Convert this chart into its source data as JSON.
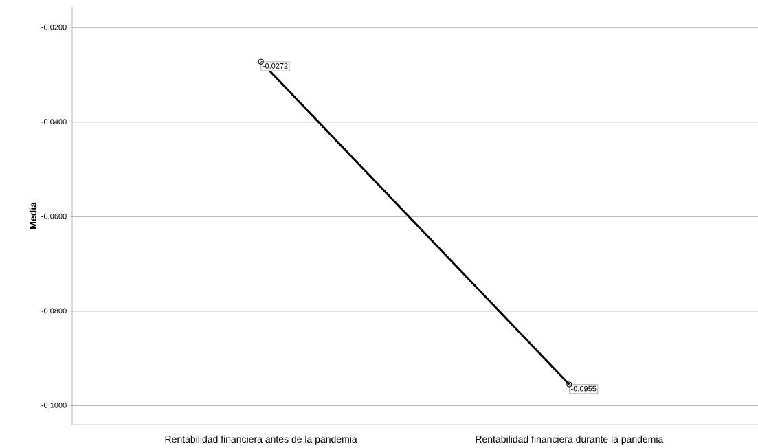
{
  "chart_data": {
    "type": "line",
    "ylabel": "Media",
    "categories": [
      "Rentabilidad financiera antes de la pandemia",
      "Rentabilidad financiera durante la pandemia"
    ],
    "values": [
      -0.0272,
      -0.0955
    ],
    "value_labels": [
      "-0,0272",
      "-0,0955"
    ],
    "color": "#000000",
    "marker": "circle",
    "line_style": "solid",
    "grid": "y",
    "ylim": [
      -0.104,
      -0.0156
    ],
    "yticks": [
      {
        "value": -0.02,
        "label": "-0,0200"
      },
      {
        "value": -0.04,
        "label": "-0,0400"
      },
      {
        "value": -0.06,
        "label": "-0,0600"
      },
      {
        "value": -0.08,
        "label": "-0,0800"
      },
      {
        "value": -0.1,
        "label": "-0,1000"
      }
    ]
  }
}
